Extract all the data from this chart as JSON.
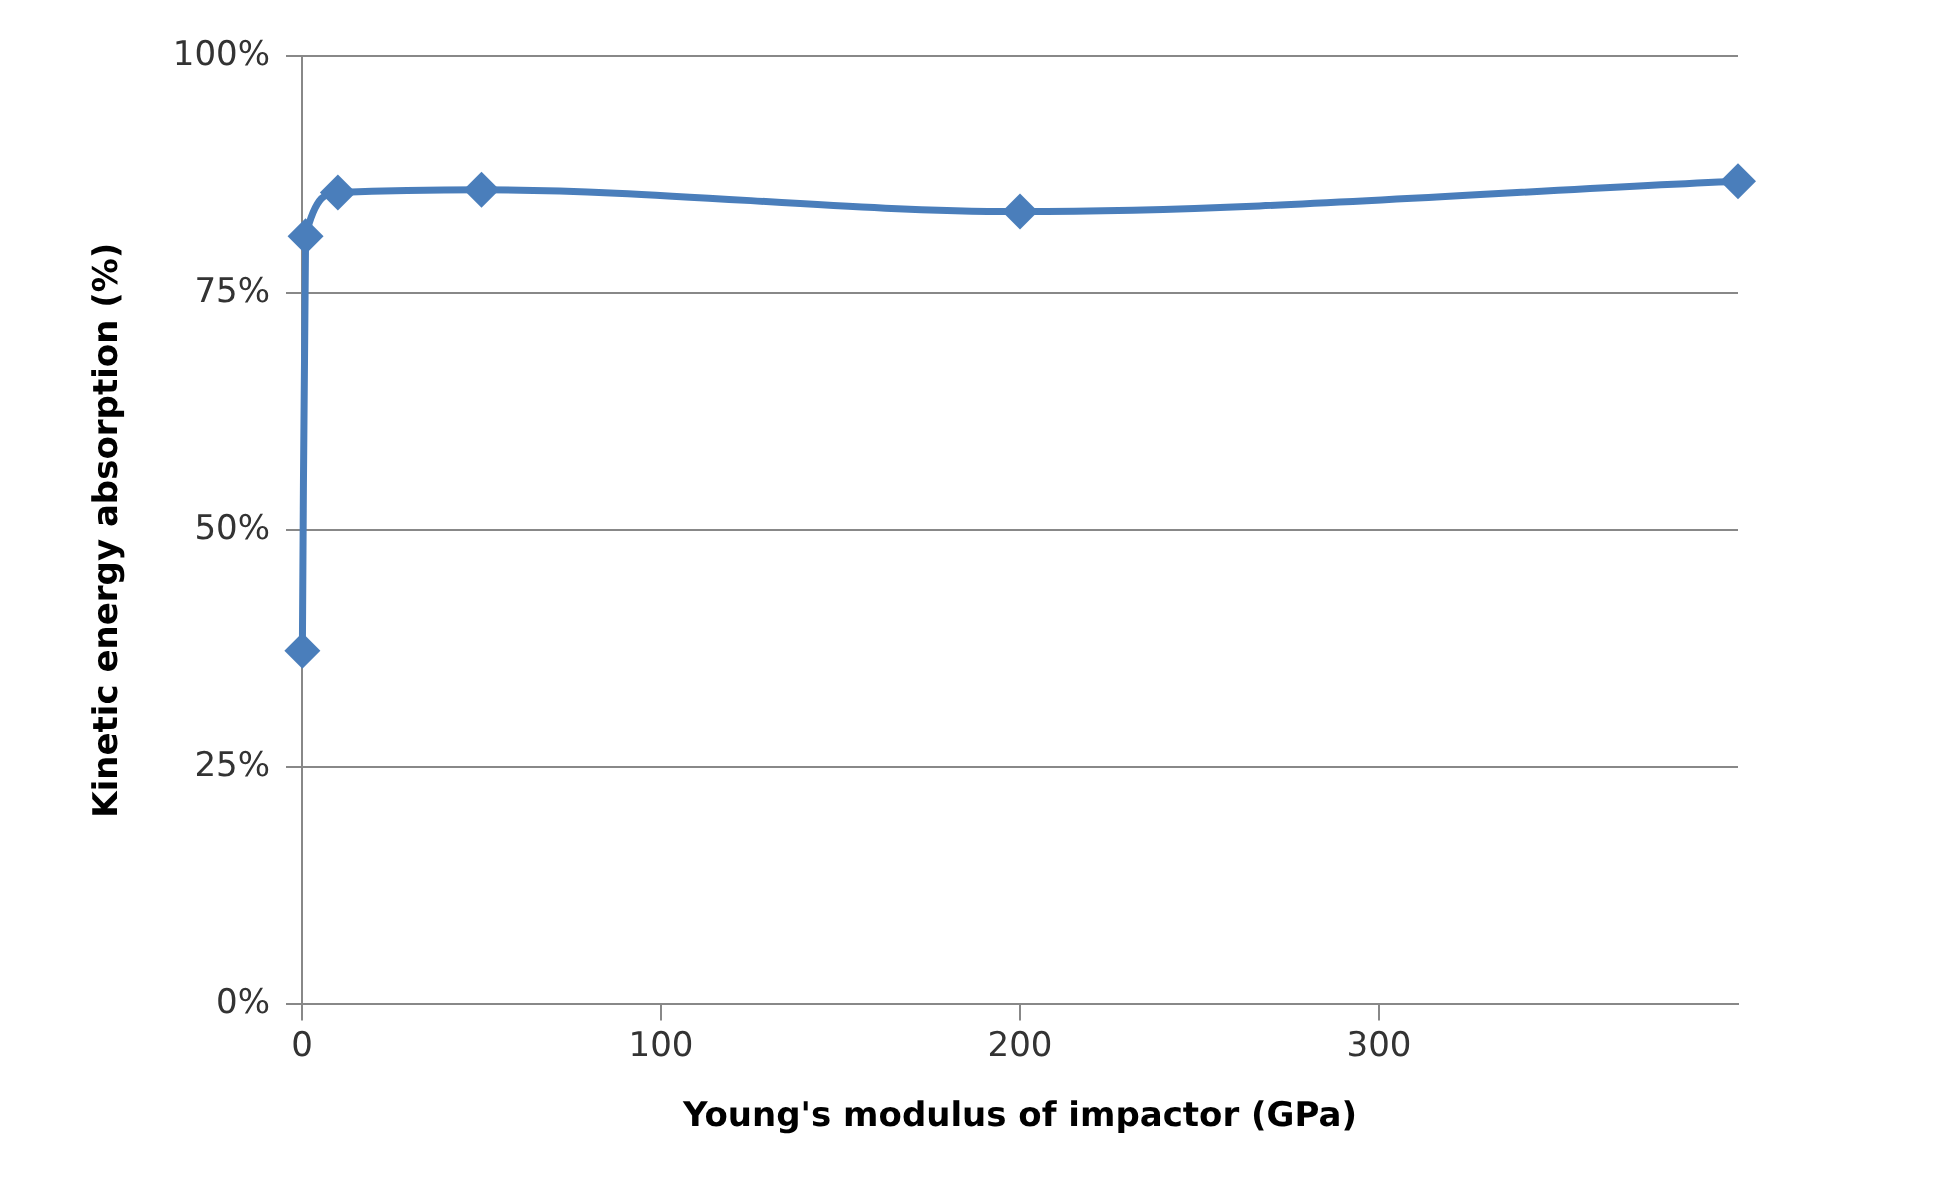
{
  "chart_data": {
    "type": "line",
    "xlabel": "Young's modulus of impactor (GPa)",
    "ylabel": "Kinetic energy absorption (%)",
    "x": [
      0.1,
      1,
      10,
      50,
      200,
      400
    ],
    "series": [
      {
        "color": "#4a7ebb",
        "values": [
          37.3,
          81,
          85.6,
          85.9,
          83.6,
          86.8
        ]
      }
    ],
    "xlim": [
      0,
      400
    ],
    "xticks": [
      0,
      100,
      200,
      300
    ],
    "ylim": [
      0,
      100
    ],
    "yticks": [
      {
        "value": 0,
        "label": "0%"
      },
      {
        "value": 25,
        "label": "25%"
      },
      {
        "value": 50,
        "label": "50%"
      },
      {
        "value": 75,
        "label": "75%"
      },
      {
        "value": 100,
        "label": "100%"
      }
    ],
    "grid": "y",
    "marker": "diamond",
    "line_style": "solid",
    "legend": false
  }
}
